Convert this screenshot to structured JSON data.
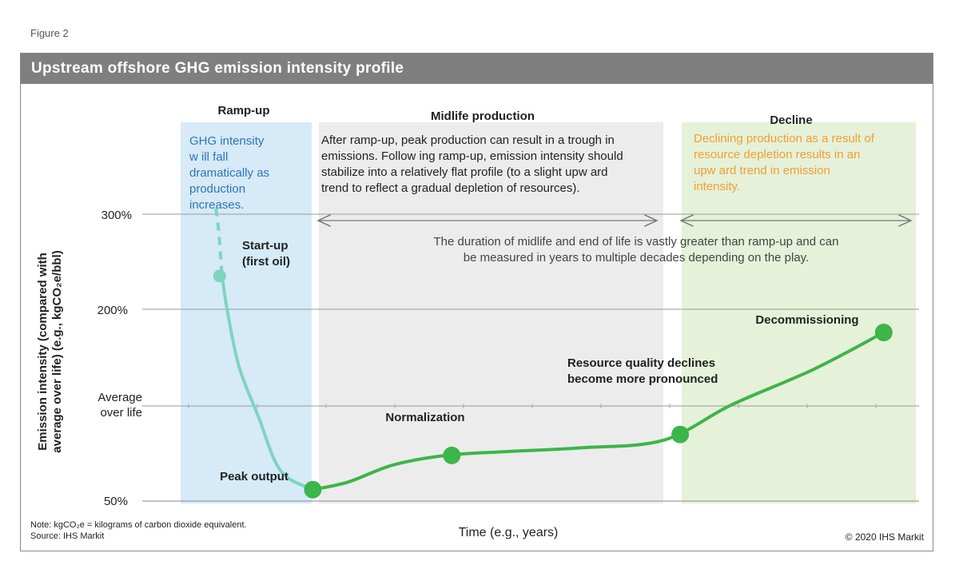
{
  "figure_label": "Figure 2",
  "title": "Upstream offshore GHG emission intensity profile",
  "footer": {
    "note": "Note: kgCO₂e = kilograms of carbon dioxide equivalent.",
    "source": "Source:  IHS Markit",
    "copyright": "© 2020  IHS Markit"
  },
  "colors": {
    "rampup_band": "#d6eaf8",
    "midlife_band": "#ececec",
    "decline_band": "#e6f1d9",
    "rampup_curve": "#7fd4bf",
    "main_curve": "#3cb54a",
    "rampup_text": "#2e75b6",
    "decline_text": "#f0a030"
  },
  "chart_data": {
    "type": "line",
    "title": "Upstream offshore GHG emission intensity profile",
    "xlabel": "Time (e.g., years)",
    "ylabel": "Emission intensity (compared with average over life) (e.g., kgCO₂e/bbl)",
    "y_ticks": [
      "300%",
      "200%",
      "Average over life",
      "50%"
    ],
    "y_tick_values": [
      300,
      200,
      100,
      50
    ],
    "ylim": [
      50,
      300
    ],
    "xlim": [
      0,
      100
    ],
    "grid": true,
    "phases": [
      {
        "name": "Ramp-up",
        "x_start": 0,
        "x_end": 17,
        "description": "GHG intensity will fall dramatically as production increases."
      },
      {
        "name": "Midlife production",
        "x_start": 18,
        "x_end": 65,
        "description": "After ramp-up, peak production can result in a trough in emissions. Following ramp-up, emission intensity should stabilize into a relatively flat profile (to a slight upward trend to reflect a gradual depletion of resources)."
      },
      {
        "name": "Decline",
        "x_start": 67,
        "x_end": 100,
        "description": "Declining production as a result of resource depletion results in an upward trend in emission intensity."
      }
    ],
    "duration_note": "The duration of midlife and end of life is vastly greater than ramp-up and can be measured in years to multiple decades depending on the play.",
    "series": [
      {
        "name": "Ramp-up",
        "style": "dashed-then-solid",
        "points": [
          [
            6.4,
            306
          ],
          [
            6.8,
            280
          ],
          [
            7.2,
            236
          ],
          [
            8,
            195
          ],
          [
            9.5,
            140
          ],
          [
            12,
            95
          ],
          [
            15,
            66
          ],
          [
            19.3,
            56
          ]
        ]
      },
      {
        "name": "Midlife and decline",
        "points": [
          [
            19.3,
            56
          ],
          [
            24,
            60
          ],
          [
            30,
            69
          ],
          [
            37,
            74
          ],
          [
            45,
            76
          ],
          [
            55,
            78
          ],
          [
            66,
            82
          ],
          [
            75,
            101
          ],
          [
            86,
            138
          ],
          [
            95.3,
            176
          ]
        ]
      }
    ],
    "markers": [
      {
        "label": "Start-up (first oil)",
        "x": 6.9,
        "y": 235,
        "color_key": "rampup_curve"
      },
      {
        "label": "Peak output",
        "x": 19.3,
        "y": 56,
        "color_key": "main_curve"
      },
      {
        "label": "Normalization",
        "x": 37.8,
        "y": 74,
        "color_key": "main_curve"
      },
      {
        "label": "Resource quality declines become more pronounced",
        "x": 68.2,
        "y": 85,
        "color_key": "main_curve"
      },
      {
        "label": "Decommissioning",
        "x": 95.3,
        "y": 176,
        "color_key": "main_curve"
      }
    ]
  }
}
